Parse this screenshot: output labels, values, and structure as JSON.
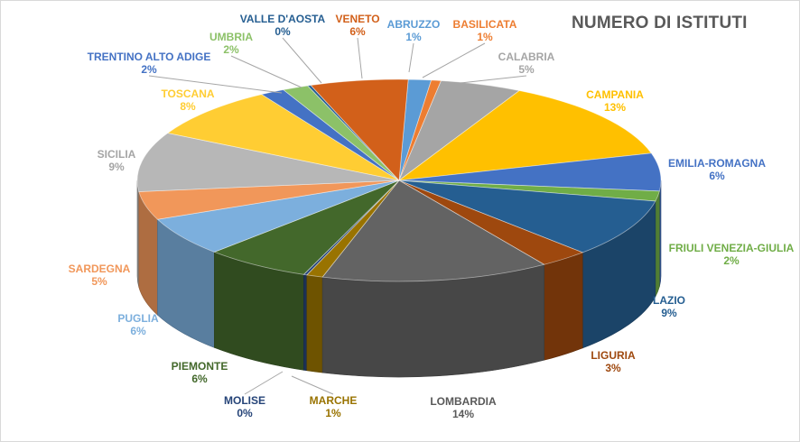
{
  "chart_data": {
    "type": "pie",
    "title": "NUMERO DI ISTITUTI",
    "slices": [
      {
        "label": "ABRUZZO",
        "pct_label": "1%",
        "value": 1.4,
        "color": "#5B9BD5"
      },
      {
        "label": "BASILICATA",
        "pct_label": "1%",
        "value": 0.6,
        "color": "#ED7D31"
      },
      {
        "label": "CALABRIA",
        "pct_label": "5%",
        "value": 5.0,
        "color": "#A5A5A5"
      },
      {
        "label": "CAMPANIA",
        "pct_label": "13%",
        "value": 13.0,
        "color": "#FFC000"
      },
      {
        "label": "EMILIA-ROMAGNA",
        "pct_label": "6%",
        "value": 6.0,
        "color": "#4472C4"
      },
      {
        "label": "FRIULI VENEZIA-GIULIA",
        "pct_label": "2%",
        "value": 1.6,
        "color": "#70AD47"
      },
      {
        "label": "LAZIO",
        "pct_label": "9%",
        "value": 9.3,
        "color": "#255E91"
      },
      {
        "label": "LIGURIA",
        "pct_label": "3%",
        "value": 3.0,
        "color": "#9E480E"
      },
      {
        "label": "LOMBARDIA",
        "pct_label": "14%",
        "value": 14.0,
        "color": "#636363"
      },
      {
        "label": "MARCHE",
        "pct_label": "1%",
        "value": 1.0,
        "color": "#997300"
      },
      {
        "label": "MOLISE",
        "pct_label": "0%",
        "value": 0.2,
        "color": "#264478"
      },
      {
        "label": "PIEMONTE",
        "pct_label": "6%",
        "value": 6.5,
        "color": "#43682B"
      },
      {
        "label": "PUGLIA",
        "pct_label": "6%",
        "value": 6.2,
        "color": "#7CAFDD"
      },
      {
        "label": "SARDEGNA",
        "pct_label": "5%",
        "value": 4.5,
        "color": "#F1975A"
      },
      {
        "label": "SICILIA",
        "pct_label": "9%",
        "value": 9.5,
        "color": "#B7B7B7"
      },
      {
        "label": "TOSCANA",
        "pct_label": "8%",
        "value": 8.4,
        "color": "#FFCD33"
      },
      {
        "label": "TRENTINO ALTO ADIGE",
        "pct_label": "2%",
        "value": 1.5,
        "color": "#4472C4"
      },
      {
        "label": "UMBRIA",
        "pct_label": "2%",
        "value": 1.6,
        "color": "#8CC168"
      },
      {
        "label": "VALLE D'AOSTA",
        "pct_label": "0%",
        "value": 0.2,
        "color": "#255E91"
      },
      {
        "label": "VENETO",
        "pct_label": "6%",
        "value": 6.0,
        "color": "#D2601A"
      }
    ]
  }
}
